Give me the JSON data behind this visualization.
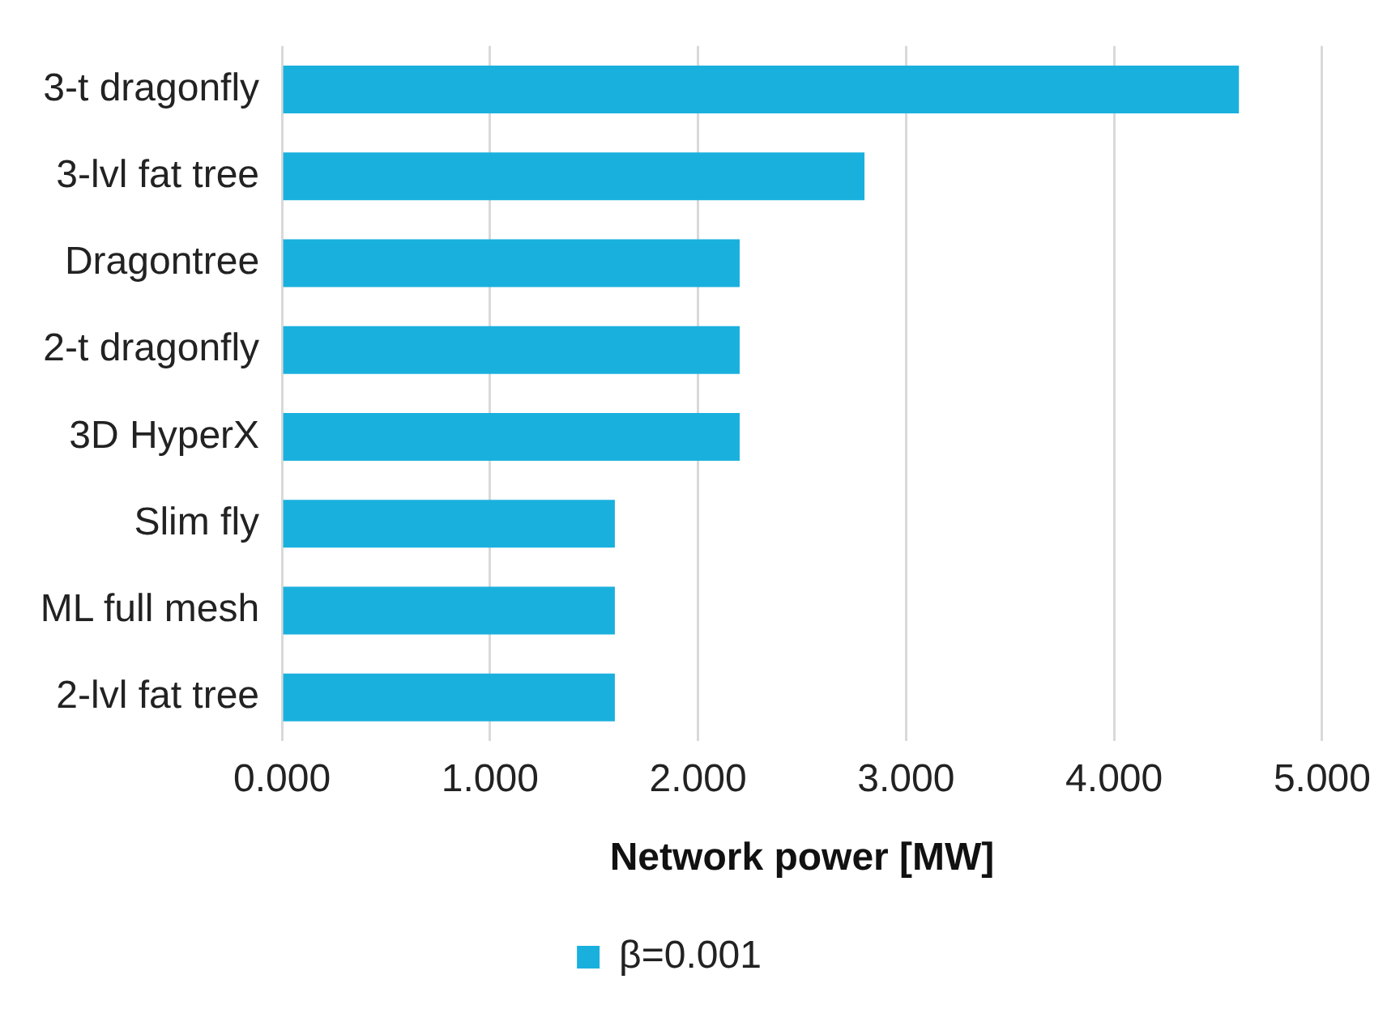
{
  "chart_data": {
    "type": "bar",
    "orientation": "horizontal",
    "xlabel": "Network power [MW]",
    "categories": [
      "3-t dragonfly",
      "3-lvl fat tree",
      "Dragontree",
      "2-t dragonfly",
      "3D HyperX",
      "Slim fly",
      "ML full mesh",
      "2-lvl fat tree"
    ],
    "series": [
      {
        "name": "β=0.001",
        "color": "#1ab0de",
        "values": [
          4.6,
          2.8,
          2.2,
          2.2,
          2.2,
          1.6,
          1.6,
          1.6
        ]
      }
    ],
    "xlim": [
      0,
      5
    ],
    "xticks": [
      {
        "value": 0,
        "label": "0.000"
      },
      {
        "value": 1,
        "label": "1.000"
      },
      {
        "value": 2,
        "label": "2.000"
      },
      {
        "value": 3,
        "label": "3.000"
      },
      {
        "value": 4,
        "label": "4.000"
      },
      {
        "value": 5,
        "label": "5.000"
      }
    ],
    "grid": "x",
    "legend": "bottom"
  }
}
